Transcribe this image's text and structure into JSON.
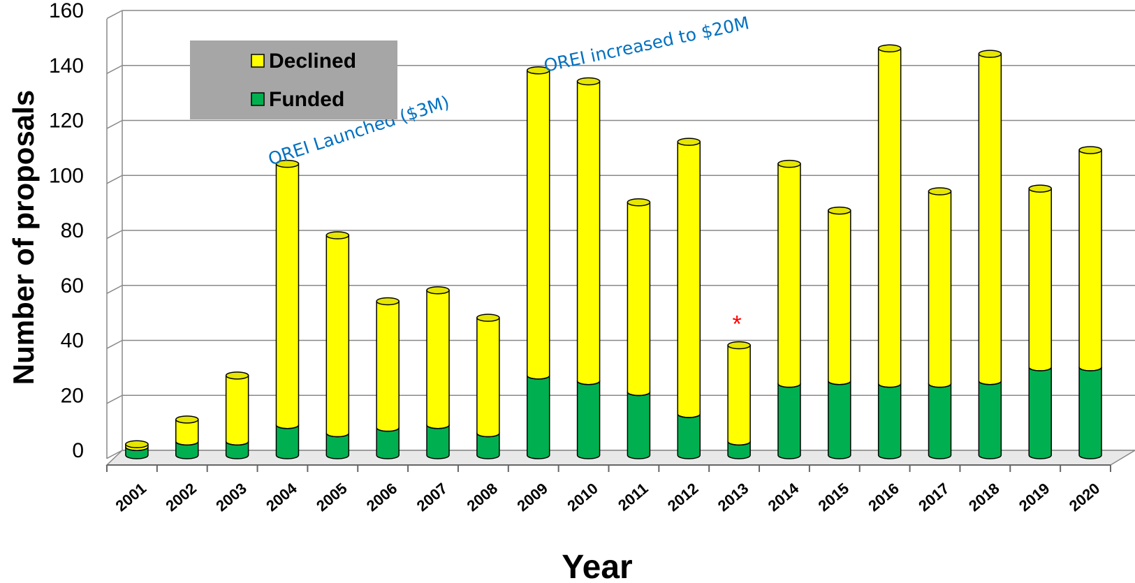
{
  "chart_data": {
    "type": "bar",
    "stacked": true,
    "categories": [
      "2001",
      "2002",
      "2003",
      "2004",
      "2005",
      "2006",
      "2007",
      "2008",
      "2009",
      "2010",
      "2011",
      "2012",
      "2013",
      "2014",
      "2015",
      "2016",
      "2017",
      "2018",
      "2019",
      "2020"
    ],
    "series": [
      {
        "name": "Funded",
        "color": "#00b050",
        "values": [
          3,
          5,
          5,
          11,
          8,
          10,
          11,
          8,
          29,
          27,
          23,
          15,
          5,
          26,
          27,
          26,
          26,
          27,
          32,
          32
        ]
      },
      {
        "name": "Declined",
        "color": "#ffff00",
        "values": [
          1,
          8,
          24,
          95,
          72,
          46,
          49,
          42,
          111,
          109,
          69,
          99,
          35,
          80,
          62,
          122,
          70,
          119,
          65,
          79
        ]
      }
    ],
    "title": "",
    "xlabel": "Year",
    "ylabel": "Number of proposals",
    "ylim": [
      0,
      160
    ],
    "yticks": [
      "0",
      "20",
      "40",
      "60",
      "80",
      "100",
      "120",
      "140",
      "160"
    ],
    "grid": true,
    "legend": {
      "placement": "top-left",
      "order": [
        "Declined",
        "Funded"
      ],
      "background": "#a6a6a6"
    },
    "annotations": [
      {
        "text": "OREI Launched ($3M)",
        "category": "2004",
        "color": "#0070c0"
      },
      {
        "text": "OREI increased to $20M",
        "category": "2009",
        "color": "#0070c0"
      },
      {
        "text": "*",
        "category": "2013",
        "color": "#ff0000"
      }
    ]
  }
}
